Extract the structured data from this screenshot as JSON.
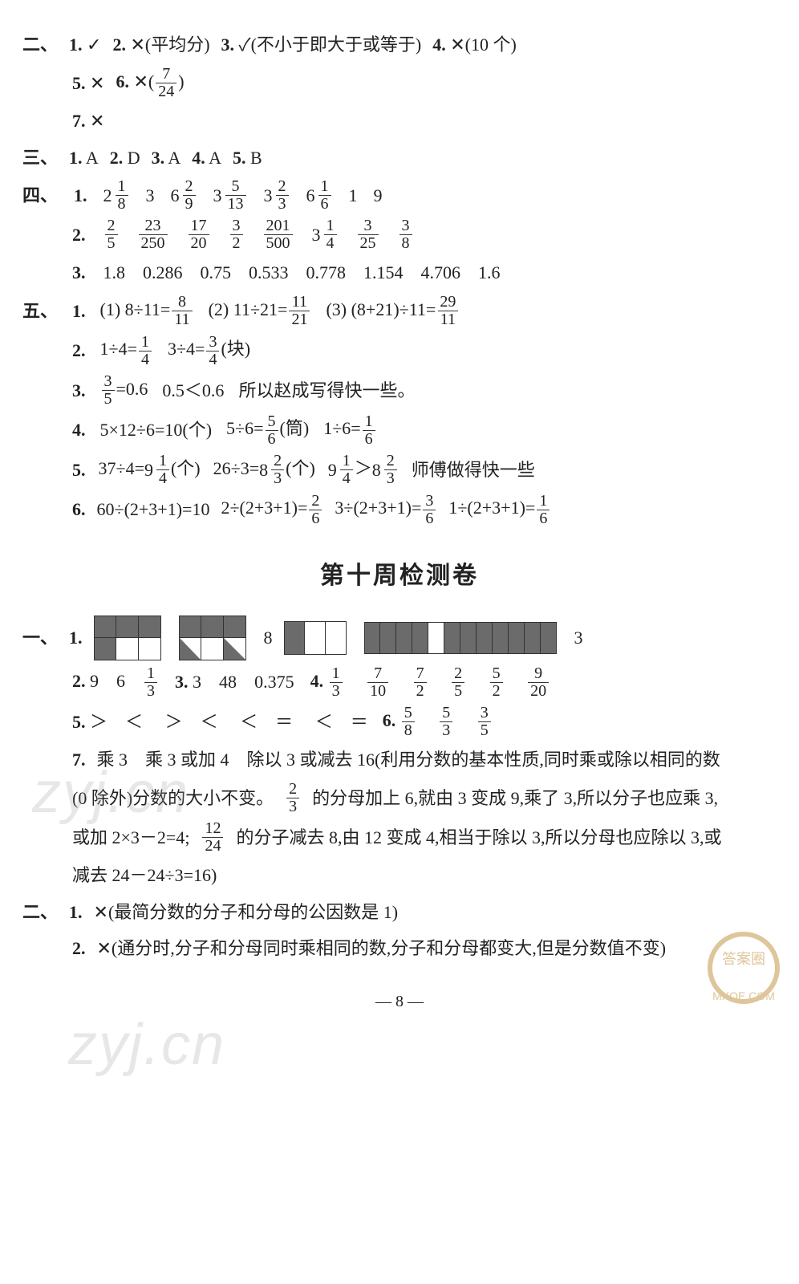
{
  "sec2": {
    "label": "二、",
    "items": [
      {
        "n": "1.",
        "t": "✓"
      },
      {
        "n": "2.",
        "t": "✕(平均分)"
      },
      {
        "n": "3.",
        "t": "✓(不小于即大于或等于)"
      },
      {
        "n": "4.",
        "t": "✕(10 个)"
      }
    ],
    "row2": [
      {
        "n": "5.",
        "t": "✕"
      },
      {
        "n": "6.",
        "pre": "✕(",
        "fr": {
          "n": "7",
          "d": "24"
        },
        "post": ")"
      }
    ],
    "row3": [
      {
        "n": "7.",
        "t": "✕"
      }
    ]
  },
  "sec3": {
    "label": "三、",
    "items": [
      {
        "n": "1.",
        "t": "A"
      },
      {
        "n": "2.",
        "t": "D"
      },
      {
        "n": "3.",
        "t": "A"
      },
      {
        "n": "4.",
        "t": "A"
      },
      {
        "n": "5.",
        "t": "B"
      }
    ]
  },
  "sec4": {
    "label": "四、",
    "q1": {
      "n": "1.",
      "mixed": [
        {
          "w": "2",
          "fn": "1",
          "fd": "8"
        },
        {
          "plain": "3"
        },
        {
          "w": "6",
          "fn": "2",
          "fd": "9"
        },
        {
          "w": "3",
          "fn": "5",
          "fd": "13"
        },
        {
          "w": "3",
          "fn": "2",
          "fd": "3"
        },
        {
          "w": "6",
          "fn": "1",
          "fd": "6"
        },
        {
          "plain": "1"
        },
        {
          "plain": "9"
        }
      ]
    },
    "q2": {
      "n": "2.",
      "fracs": [
        {
          "n": "2",
          "d": "5"
        },
        {
          "n": "23",
          "d": "250"
        },
        {
          "n": "17",
          "d": "20"
        },
        {
          "n": "3",
          "d": "2"
        },
        {
          "n": "201",
          "d": "500"
        },
        {
          "mixed": {
            "w": "3",
            "fn": "1",
            "fd": "4"
          }
        },
        {
          "n": "3",
          "d": "25"
        },
        {
          "n": "3",
          "d": "8"
        }
      ]
    },
    "q3": {
      "n": "3.",
      "vals": [
        "1.8",
        "0.286",
        "0.75",
        "0.533",
        "0.778",
        "1.154",
        "4.706",
        "1.6"
      ]
    }
  },
  "sec5": {
    "label": "五、",
    "q1": {
      "n": "1.",
      "parts": [
        {
          "lbl": "(1)",
          "a": "8÷11=",
          "fr": {
            "n": "8",
            "d": "11"
          }
        },
        {
          "lbl": "(2)",
          "a": "11÷21=",
          "fr": {
            "n": "11",
            "d": "21"
          }
        },
        {
          "lbl": "(3)",
          "a": "(8+21)÷11=",
          "fr": {
            "n": "29",
            "d": "11"
          }
        }
      ]
    },
    "q2": {
      "n": "2.",
      "a": "1÷4=",
      "fr1": {
        "n": "1",
        "d": "4"
      },
      "b": "3÷4=",
      "fr2": {
        "n": "3",
        "d": "4"
      },
      "tail": "(块)"
    },
    "q3": {
      "n": "3.",
      "fr": {
        "n": "3",
        "d": "5"
      },
      "a": "=0.6",
      "b": "0.5＜0.6",
      "c": "所以赵成写得快一些。"
    },
    "q4": {
      "n": "4.",
      "a": "5×12÷6=10(个)",
      "b": "5÷6=",
      "fr1": {
        "n": "5",
        "d": "6"
      },
      "bt": "(筒)",
      "c": "1÷6=",
      "fr2": {
        "n": "1",
        "d": "6"
      }
    },
    "q5": {
      "n": "5.",
      "a": "37÷4=",
      "m1": {
        "w": "9",
        "fn": "1",
        "fd": "4"
      },
      "at": "(个)",
      "b": "26÷3=",
      "m2": {
        "w": "8",
        "fn": "2",
        "fd": "3"
      },
      "bt": "(个)",
      "m3": {
        "w": "9",
        "fn": "1",
        "fd": "4"
      },
      "gt": "＞",
      "m4": {
        "w": "8",
        "fn": "2",
        "fd": "3"
      },
      "c": "师傅做得快一些"
    },
    "q6": {
      "n": "6.",
      "a": "60÷(2+3+1)=10",
      "b": "2÷(2+3+1)=",
      "fr1": {
        "n": "2",
        "d": "6"
      },
      "c": "3÷(2+3+1)=",
      "fr2": {
        "n": "3",
        "d": "6"
      },
      "d": "1÷(2+3+1)=",
      "fr3": {
        "n": "1",
        "d": "6"
      }
    }
  },
  "heading": "第十周检测卷",
  "w10": {
    "sec1": {
      "label": "一、",
      "q1": {
        "n": "1.",
        "after1": "8",
        "after2": "3",
        "grid_a": {
          "rows": 2,
          "cols": 3,
          "dark": "#6b6b6b",
          "cells": [
            [
              1,
              1,
              1
            ],
            [
              1,
              0,
              0
            ]
          ]
        },
        "grid_b": {
          "rows": 2,
          "cols": 3,
          "dark": "#6b6b6b",
          "tri": true,
          "cells": [
            [
              1,
              1,
              1
            ],
            [
              2,
              0,
              2
            ]
          ]
        },
        "strip_c": {
          "cols": 3,
          "dark": "#6b6b6b",
          "cells": [
            1,
            0,
            0
          ]
        },
        "strip_d": {
          "cols": 12,
          "dark": "#6b6b6b",
          "cells": [
            1,
            1,
            1,
            1,
            0,
            1,
            1,
            1,
            1,
            1,
            1,
            1
          ]
        }
      },
      "q2": {
        "n": "2.",
        "a": "9",
        "b": "6",
        "fr": {
          "n": "1",
          "d": "3"
        }
      },
      "q3": {
        "n": "3.",
        "a": "3",
        "b": "48",
        "c": "0.375"
      },
      "q4": {
        "n": "4.",
        "fracs": [
          {
            "n": "1",
            "d": "3"
          },
          {
            "n": "7",
            "d": "10"
          },
          {
            "n": "7",
            "d": "2"
          },
          {
            "n": "2",
            "d": "5"
          },
          {
            "n": "5",
            "d": "2"
          },
          {
            "n": "9",
            "d": "20"
          }
        ]
      },
      "q5": {
        "n": "5.",
        "vals": [
          "＞",
          "＜",
          "＞",
          "＜",
          "＜",
          "＝",
          "＜",
          "＝"
        ]
      },
      "q6": {
        "n": "6.",
        "fracs": [
          {
            "n": "5",
            "d": "8"
          },
          {
            "n": "5",
            "d": "3"
          },
          {
            "n": "3",
            "d": "5"
          }
        ]
      },
      "q7": {
        "n": "7.",
        "l1": "乘 3　乘 3 或加 4　除以 3 或减去 16(利用分数的基本性质,同时乘或除以相同的数",
        "l2a": "(0 除外)分数的大小不变。",
        "fr1": {
          "n": "2",
          "d": "3"
        },
        "l2b": "的分母加上 6,就由 3 变成 9,乘了 3,所以分子也应乘 3,",
        "l3a": "或加 2×3－2=4;",
        "fr2": {
          "n": "12",
          "d": "24"
        },
        "l3b": "的分子减去 8,由 12 变成 4,相当于除以 3,所以分母也应除以 3,或",
        "l4": "减去 24－24÷3=16)"
      }
    },
    "sec2": {
      "label": "二、",
      "q1": {
        "n": "1.",
        "t": "✕(最简分数的分子和分母的公因数是 1)"
      },
      "q2": {
        "n": "2.",
        "t": "✕(通分时,分子和分母同时乘相同的数,分子和分母都变大,但是分数值不变)"
      }
    }
  },
  "footer": "— 8 —",
  "wm1": "zyj.cn",
  "wm2": "zyj.cn",
  "stamp": "MXQE.COM"
}
